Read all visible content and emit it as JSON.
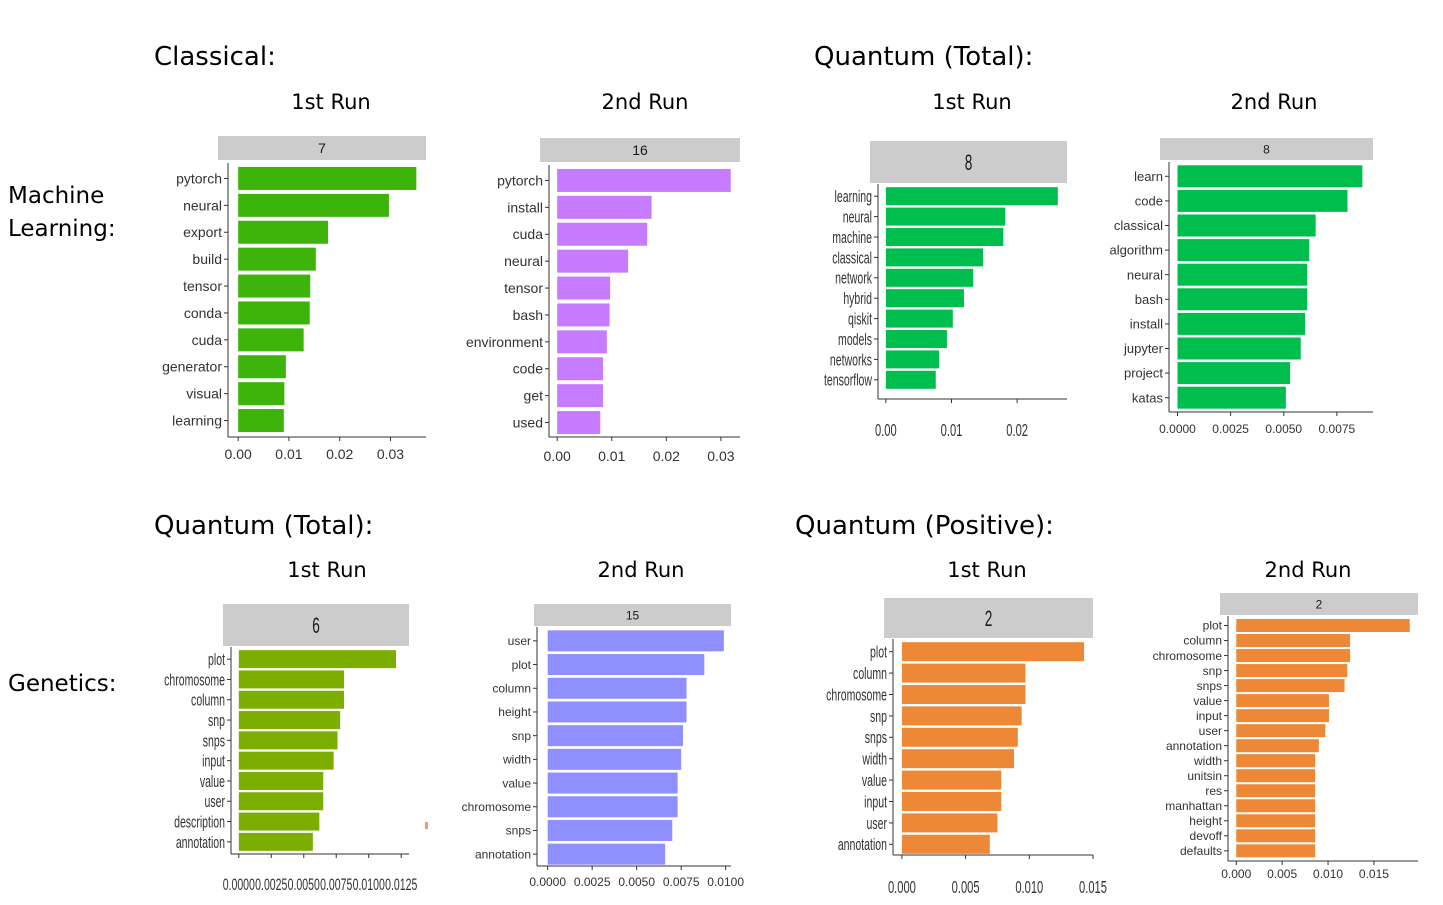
{
  "section_titles": {
    "classical": "Classical:",
    "quantum_total_top": "Quantum (Total):",
    "quantum_total_bottom": "Quantum (Total):",
    "quantum_positive": "Quantum (Positive):"
  },
  "row_labels": {
    "machine_learning": "Machine\nLearning:",
    "genetics": "Genetics:"
  },
  "run_labels": {
    "first": "1st Run",
    "second": "2nd Run"
  },
  "colors": {
    "green_dark": "#3cb40a",
    "purple": "#c77cff",
    "green_teal": "#00be4e",
    "olive": "#7cae00",
    "periwinkle": "#8f8fff",
    "orange": "#ed8936",
    "strip_bg": "#cccccc"
  },
  "chart_data": [
    {
      "type": "bar",
      "orientation": "horizontal",
      "group": "Classical",
      "row": "Machine Learning",
      "run": "1st Run",
      "facet": "7",
      "categories": [
        "pytorch",
        "neural",
        "export",
        "build",
        "tensor",
        "conda",
        "cuda",
        "generator",
        "visual",
        "learning"
      ],
      "values": [
        0.0351,
        0.0297,
        0.0177,
        0.0153,
        0.0142,
        0.0141,
        0.0129,
        0.0094,
        0.0091,
        0.009
      ],
      "xlim": [
        -0.002,
        0.037
      ],
      "xticks": [
        0.0,
        0.01,
        0.02,
        0.03
      ],
      "xtick_labels": [
        "0.00",
        "0.01",
        "0.02",
        "0.03"
      ],
      "color": "#3cb40a"
    },
    {
      "type": "bar",
      "orientation": "horizontal",
      "group": "Classical",
      "row": "Machine Learning",
      "run": "2nd Run",
      "facet": "16",
      "categories": [
        "pytorch",
        "install",
        "cuda",
        "neural",
        "tensor",
        "bash",
        "environment",
        "code",
        "get",
        "used"
      ],
      "values": [
        0.0318,
        0.0173,
        0.0165,
        0.013,
        0.0097,
        0.0096,
        0.0091,
        0.0084,
        0.0084,
        0.0079
      ],
      "xlim": [
        -0.0015,
        0.0335
      ],
      "xticks": [
        0.0,
        0.01,
        0.02,
        0.03
      ],
      "xtick_labels": [
        "0.00",
        "0.01",
        "0.02",
        "0.03"
      ],
      "color": "#c77cff"
    },
    {
      "type": "bar",
      "orientation": "horizontal",
      "group": "Quantum (Total)",
      "row": "Machine Learning",
      "run": "1st Run",
      "facet": "8",
      "categories": [
        "learning",
        "neural",
        "machine",
        "classical",
        "network",
        "hybrid",
        "qiskit",
        "models",
        "networks",
        "tensorflow"
      ],
      "values": [
        0.0262,
        0.0182,
        0.0179,
        0.0148,
        0.0133,
        0.0119,
        0.0102,
        0.0093,
        0.0081,
        0.0076
      ],
      "xlim": [
        -0.0012,
        0.0276
      ],
      "xticks": [
        0.0,
        0.01,
        0.02
      ],
      "xtick_labels": [
        "0.00",
        "0.01",
        "0.02"
      ],
      "color": "#00be4e"
    },
    {
      "type": "bar",
      "orientation": "horizontal",
      "group": "Quantum (Total)",
      "row": "Machine Learning",
      "run": "2nd Run",
      "facet": "8",
      "categories": [
        "learn",
        "code",
        "classical",
        "algorithm",
        "neural",
        "bash",
        "install",
        "jupyter",
        "project",
        "katas"
      ],
      "values": [
        0.0087,
        0.008,
        0.0065,
        0.0062,
        0.0061,
        0.0061,
        0.006,
        0.0058,
        0.0053,
        0.0051
      ],
      "xlim": [
        -0.0004,
        0.0092
      ],
      "xticks": [
        0.0,
        0.0025,
        0.005,
        0.0075
      ],
      "xtick_labels": [
        "0.0000",
        "0.0025",
        "0.0050",
        "0.0075"
      ],
      "color": "#00be4e"
    },
    {
      "type": "bar",
      "orientation": "horizontal",
      "group": "Quantum (Total)",
      "row": "Genetics",
      "run": "1st Run",
      "facet": "6",
      "categories": [
        "plot",
        "chromosome",
        "column",
        "snp",
        "snps",
        "input",
        "value",
        "user",
        "description",
        "annotation"
      ],
      "values": [
        0.0121,
        0.0081,
        0.0081,
        0.0078,
        0.0076,
        0.0073,
        0.0065,
        0.0065,
        0.0062,
        0.0057
      ],
      "xlim": [
        -0.0006,
        0.0131
      ],
      "xticks": [
        0.0,
        0.0025,
        0.005,
        0.0075,
        0.01,
        0.0125
      ],
      "xtick_labels": [
        "0.0000",
        "0.0025",
        "0.0050",
        "0.0075",
        "0.0100",
        "0.0125"
      ],
      "color": "#7cae00"
    },
    {
      "type": "bar",
      "orientation": "horizontal",
      "group": "Quantum (Total)",
      "row": "Genetics",
      "run": "2nd Run",
      "facet": "15",
      "categories": [
        "user",
        "plot",
        "column",
        "height",
        "snp",
        "width",
        "value",
        "chromosome",
        "snps",
        "annotation"
      ],
      "values": [
        0.0099,
        0.0088,
        0.0078,
        0.0078,
        0.0076,
        0.0075,
        0.0073,
        0.0073,
        0.007,
        0.0066
      ],
      "xlim": [
        -0.0006,
        0.0103
      ],
      "xticks": [
        0.0,
        0.0025,
        0.005,
        0.0075,
        0.01
      ],
      "xtick_labels": [
        "0.0000",
        "0.0025",
        "0.0050",
        "0.0075",
        "0.0100"
      ],
      "color": "#8f8fff"
    },
    {
      "type": "bar",
      "orientation": "horizontal",
      "group": "Quantum (Positive)",
      "row": "Genetics",
      "run": "1st Run",
      "facet": "2",
      "categories": [
        "plot",
        "column",
        "chromosome",
        "snp",
        "snps",
        "width",
        "value",
        "input",
        "user",
        "annotation"
      ],
      "values": [
        0.0143,
        0.0097,
        0.0097,
        0.0094,
        0.0091,
        0.0088,
        0.0078,
        0.0078,
        0.0075,
        0.0069
      ],
      "xlim": [
        -0.0007,
        0.015
      ],
      "xticks": [
        0.0,
        0.005,
        0.01,
        0.015
      ],
      "xtick_labels": [
        "0.000",
        "0.005",
        "0.010",
        "0.015"
      ],
      "color": "#ed8936"
    },
    {
      "type": "bar",
      "orientation": "horizontal",
      "group": "Quantum (Positive)",
      "row": "Genetics",
      "run": "2nd Run",
      "facet": "2",
      "categories": [
        "plot",
        "column",
        "chromosome",
        "snp",
        "snps",
        "value",
        "input",
        "user",
        "annotation",
        "width",
        "unitsin",
        "res",
        "manhattan",
        "height",
        "devoff",
        "defaults"
      ],
      "values": [
        0.0189,
        0.0124,
        0.0124,
        0.0121,
        0.0118,
        0.0101,
        0.0101,
        0.0097,
        0.009,
        0.0086,
        0.0086,
        0.0086,
        0.0086,
        0.0086,
        0.0086,
        0.0086
      ],
      "xlim": [
        -0.0009,
        0.0198
      ],
      "xticks": [
        0.0,
        0.005,
        0.01,
        0.015
      ],
      "xtick_labels": [
        "0.000",
        "0.005",
        "0.010",
        "0.015"
      ],
      "color": "#ed8936"
    }
  ]
}
